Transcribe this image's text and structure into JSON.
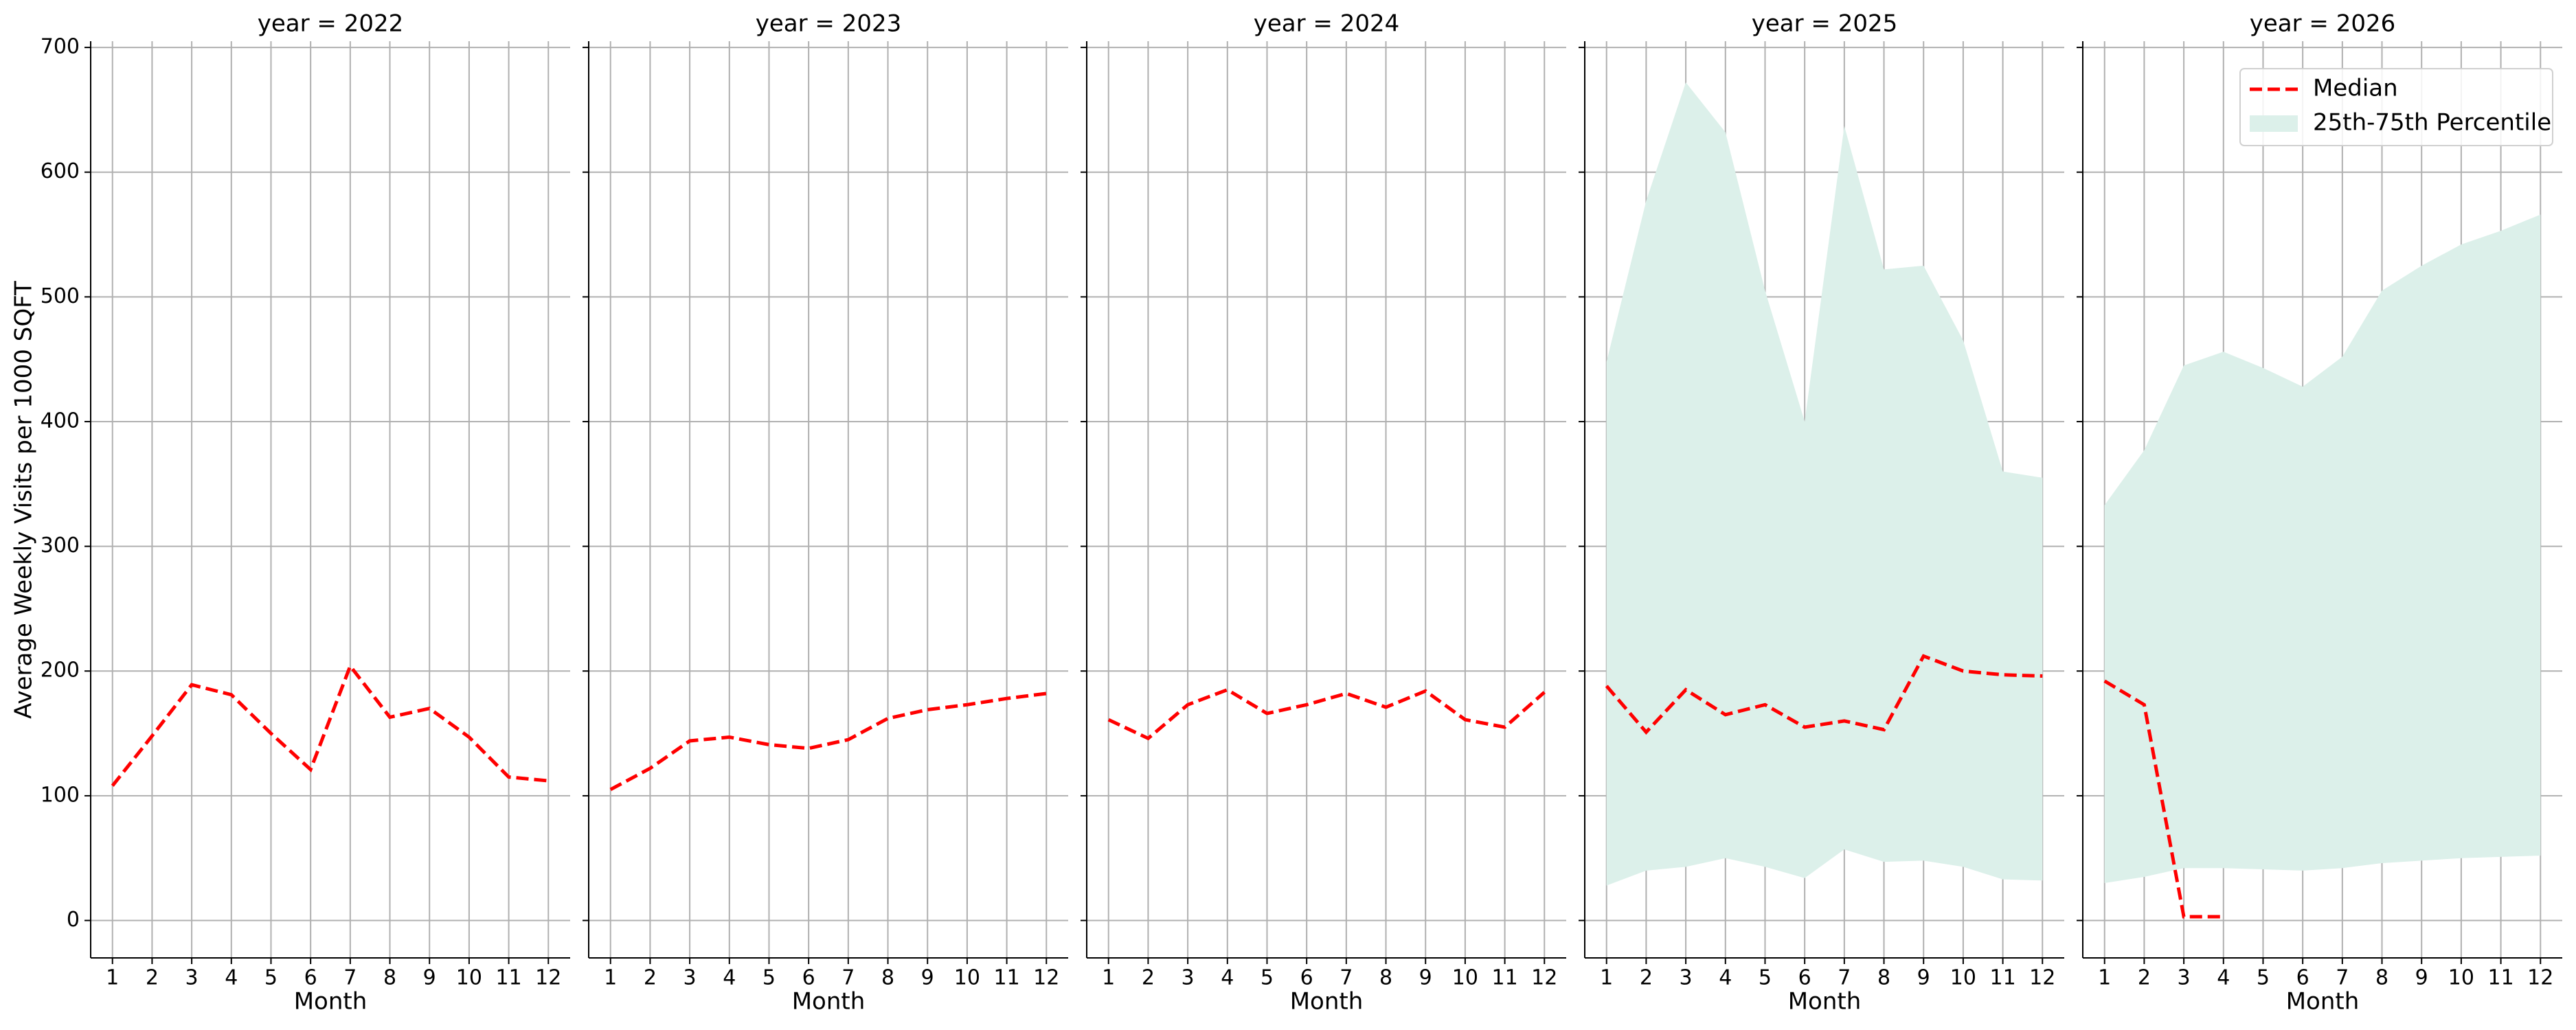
{
  "chart_data": {
    "type": "line",
    "ylabel": "Average Weekly Visits per 1000 SQFT",
    "xlabel": "Month",
    "x": [
      1,
      2,
      3,
      4,
      5,
      6,
      7,
      8,
      9,
      10,
      11,
      12
    ],
    "xlim": [
      0.45,
      12.55
    ],
    "xticks": [
      1,
      2,
      3,
      4,
      5,
      6,
      7,
      8,
      9,
      10,
      11,
      12
    ],
    "ylim": [
      -30,
      705
    ],
    "yticks": [
      0,
      100,
      200,
      300,
      400,
      500,
      600,
      700
    ],
    "grid": true,
    "legend_loc": "upper right",
    "series_styles": [
      {
        "name": "Median",
        "color": "#ff0000"
      },
      {
        "name": "25th-75th Percentile",
        "color": "#dcf0ea"
      }
    ],
    "panels": [
      {
        "title": "year = 2022",
        "median": [
          108,
          148,
          189,
          181,
          150,
          121,
          204,
          163,
          170,
          147,
          115,
          112
        ]
      },
      {
        "title": "year = 2023",
        "median": [
          105,
          122,
          144,
          147,
          141,
          138,
          145,
          162,
          169,
          173,
          178,
          182
        ]
      },
      {
        "title": "year = 2024",
        "median": [
          161,
          146,
          173,
          185,
          166,
          173,
          182,
          171,
          184,
          161,
          155,
          183
        ]
      },
      {
        "title": "year = 2025",
        "median": [
          188,
          151,
          185,
          165,
          173,
          155,
          160,
          153,
          212,
          200,
          197,
          196
        ],
        "p25": [
          28,
          40,
          43,
          50,
          43,
          34,
          57,
          47,
          48,
          43,
          33,
          32
        ],
        "p75": [
          448,
          577,
          672,
          632,
          505,
          400,
          637,
          522,
          525,
          465,
          360,
          355
        ]
      },
      {
        "title": "year = 2026",
        "median": [
          192,
          173,
          3,
          3,
          null,
          null,
          null,
          null,
          null,
          null,
          null,
          null
        ],
        "p25": [
          30,
          35,
          42,
          42,
          41,
          40,
          42,
          46,
          48,
          50,
          51,
          52
        ],
        "p75": [
          333,
          377,
          445,
          456,
          443,
          428,
          452,
          505,
          525,
          542,
          553,
          566
        ]
      }
    ]
  }
}
